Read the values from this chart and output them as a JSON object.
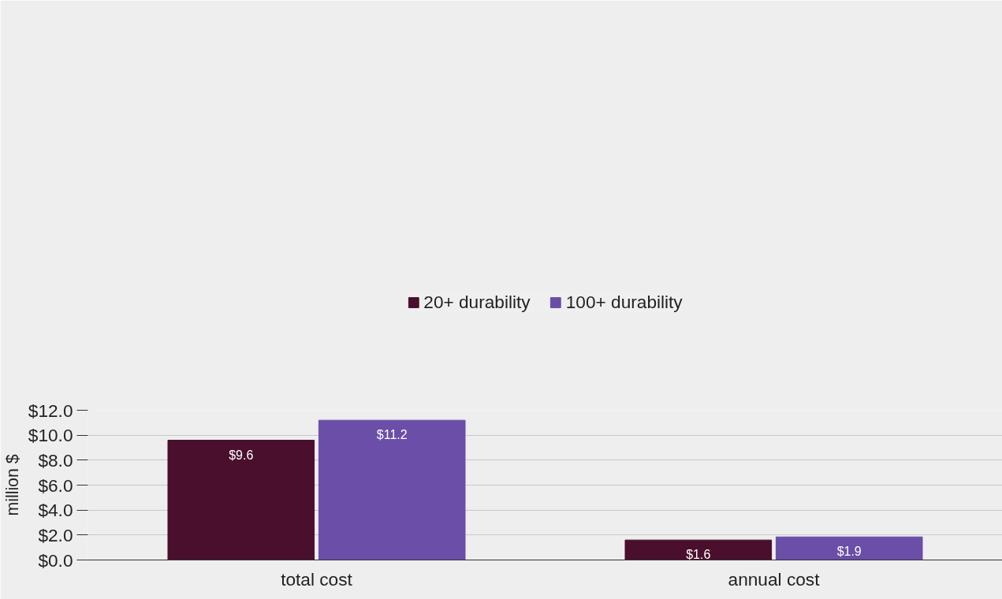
{
  "chart_data": {
    "type": "bar",
    "ylabel": "million $",
    "categories": [
      "total cost",
      "annual cost"
    ],
    "series": [
      {
        "name": "20+ durability",
        "color": "#4a0f2c",
        "values": [
          9.6,
          1.6
        ],
        "value_labels": [
          "$9.6",
          "$1.6"
        ]
      },
      {
        "name": "100+ durability",
        "color": "#6a4ea8",
        "values": [
          11.2,
          1.85
        ],
        "value_labels": [
          "$11.2",
          "$1.9"
        ]
      }
    ],
    "ylim": [
      0,
      12
    ],
    "yticks": [
      {
        "value": 0,
        "label": "$0.0"
      },
      {
        "value": 2,
        "label": "$2.0"
      },
      {
        "value": 4,
        "label": "$4.0"
      },
      {
        "value": 6,
        "label": "$6.0"
      },
      {
        "value": 8,
        "label": "$8.0"
      },
      {
        "value": 10,
        "label": "$10.0"
      },
      {
        "value": 12,
        "label": "$12.0"
      }
    ],
    "grid": "y",
    "legend": "top"
  }
}
